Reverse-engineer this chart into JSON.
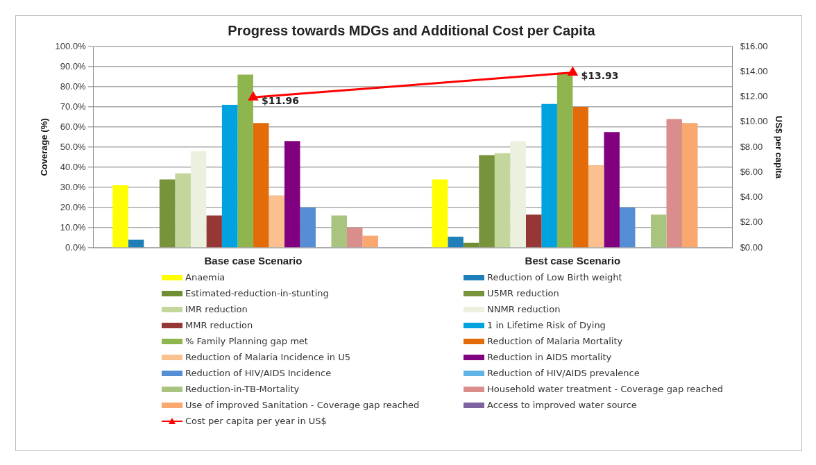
{
  "chart_data": {
    "type": "bar",
    "title": "Progress towards MDGs and Additional Cost per Capita",
    "ylabel": "Coverage (%)",
    "y2label": "US$ per capita",
    "categories": [
      "Base case Scenario",
      "Best case Scenario"
    ],
    "series": [
      {
        "name": "Anaemia",
        "color": "#ffff00",
        "values": [
          31,
          34
        ]
      },
      {
        "name": "Reduction of Low Birth weight",
        "color": "#1f7fb8",
        "values": [
          4,
          5.5
        ]
      },
      {
        "name": "Estimated-reduction-in-stunting",
        "color": "#6f8f32",
        "values": [
          0,
          2.5
        ]
      },
      {
        "name": "U5MR reduction",
        "color": "#77933c",
        "values": [
          34,
          46
        ]
      },
      {
        "name": "IMR reduction",
        "color": "#c3d69b",
        "values": [
          37,
          47
        ]
      },
      {
        "name": "NNMR reduction",
        "color": "#ebf1de",
        "values": [
          48,
          53
        ]
      },
      {
        "name": "MMR reduction",
        "color": "#953735",
        "values": [
          16,
          16.5
        ]
      },
      {
        "name": "1 in Lifetime Risk of Dying",
        "color": "#00a2e0",
        "values": [
          71,
          71.5
        ]
      },
      {
        "name": "% Family Planning gap met",
        "color": "#8fb54f",
        "values": [
          86,
          87
        ]
      },
      {
        "name": "Reduction of Malaria Mortality",
        "color": "#e36c09",
        "values": [
          62,
          70
        ]
      },
      {
        "name": "Reduction of Malaria  Incidence in U5",
        "color": "#fac090",
        "values": [
          26,
          41
        ]
      },
      {
        "name": "Reduction in AIDS mortality",
        "color": "#800080",
        "values": [
          53,
          57.5
        ]
      },
      {
        "name": "Reduction of HIV/AIDS  Incidence",
        "color": "#558ed5",
        "values": [
          20,
          20
        ]
      },
      {
        "name": "Reduction of HIV/AIDS  prevalence",
        "color": "#60b4e8",
        "values": [
          0,
          0
        ]
      },
      {
        "name": "Reduction-in-TB-Mortality",
        "color": "#a9c47f",
        "values": [
          16,
          16.5
        ]
      },
      {
        "name": "Household water treatment - Coverage gap reached",
        "color": "#d98e8c",
        "values": [
          10,
          64
        ]
      },
      {
        "name": "Use of improved Sanitation  - Coverage gap reached",
        "color": "#f9a870",
        "values": [
          6,
          62
        ]
      },
      {
        "name": "Access to improved water source",
        "color": "#8064a2",
        "values": [
          null,
          null
        ]
      },
      {
        "name": "Cost per capita per year in US$",
        "type": "line",
        "axis": "y2",
        "marker": "triangle",
        "color": "#ff0000",
        "values": [
          11.96,
          13.93
        ],
        "value_labels": [
          "$11.96",
          "$13.93"
        ]
      }
    ],
    "ylim": [
      0,
      100
    ],
    "yticks": [
      {
        "value": 0,
        "label": "0.0%"
      },
      {
        "value": 10,
        "label": "10.0%"
      },
      {
        "value": 20,
        "label": "20.0%"
      },
      {
        "value": 30,
        "label": "30.0%"
      },
      {
        "value": 40,
        "label": "40.0%"
      },
      {
        "value": 50,
        "label": "50.0%"
      },
      {
        "value": 60,
        "label": "60.0%"
      },
      {
        "value": 70,
        "label": "70.0%"
      },
      {
        "value": 80,
        "label": "80.0%"
      },
      {
        "value": 90,
        "label": "90.0%"
      },
      {
        "value": 100,
        "label": "100.0%"
      }
    ],
    "y2lim": [
      0,
      16
    ],
    "y2ticks": [
      {
        "value": 0,
        "label": "$0.00"
      },
      {
        "value": 2,
        "label": "$2.00"
      },
      {
        "value": 4,
        "label": "$4.00"
      },
      {
        "value": 6,
        "label": "$6.00"
      },
      {
        "value": 8,
        "label": "$8.00"
      },
      {
        "value": 10,
        "label": "$10.00"
      },
      {
        "value": 12,
        "label": "$12.00"
      },
      {
        "value": 14,
        "label": "$14.00"
      },
      {
        "value": 16,
        "label": "$16.00"
      }
    ],
    "grid": "y",
    "legend": "bottom"
  }
}
